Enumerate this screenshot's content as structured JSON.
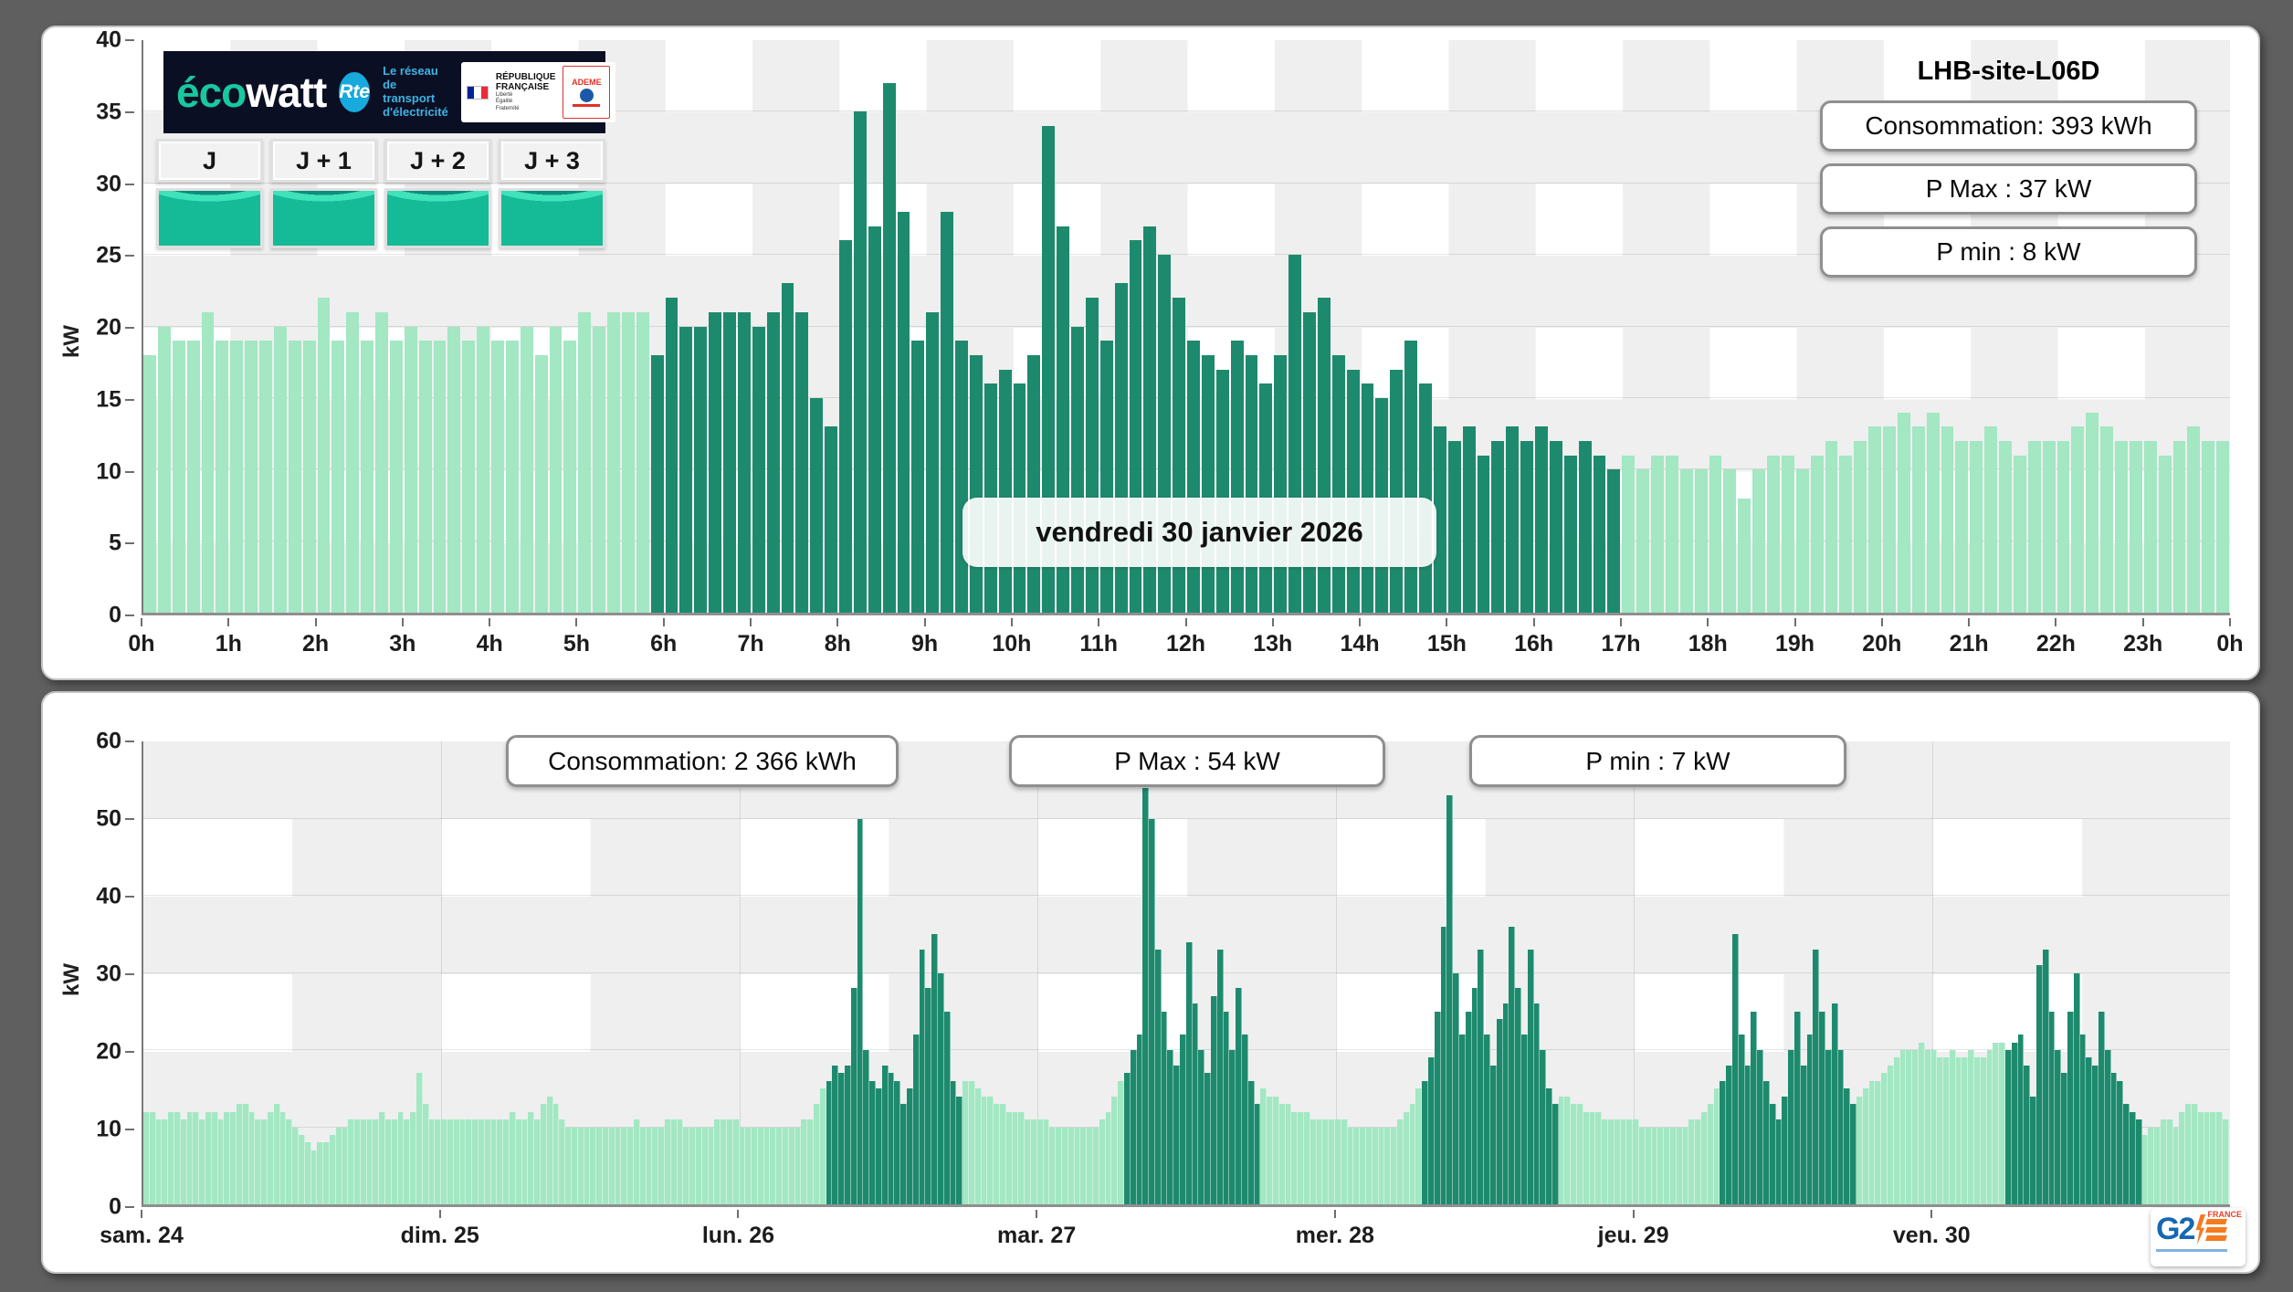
{
  "branding": {
    "ecowatt": {
      "eco": "éco",
      "watt": "watt"
    },
    "rte": {
      "abbr": "Rte",
      "tagline": {
        "0": "Le réseau",
        "1": "de transport",
        "2": "d'électricité"
      }
    },
    "gov": {
      "line1": "RÉPUBLIQUE",
      "line2": "FRANÇAISE",
      "motto": {
        "0": "Liberté",
        "1": "Égalité",
        "2": "Fraternité"
      },
      "ademe": "ADEME"
    },
    "g2e": {
      "g2": "G2",
      "france": "FRANCE"
    }
  },
  "forecast_tiles": [
    {
      "label": "J"
    },
    {
      "label": "J + 1"
    },
    {
      "label": "J + 2"
    },
    {
      "label": "J + 3"
    }
  ],
  "top_section": {
    "site_title": "LHB-site-L06D",
    "stats": [
      {
        "text": "Consommation: 393 kWh"
      },
      {
        "text": "P Max :  37 kW"
      },
      {
        "text": "P min : 8 kW"
      }
    ],
    "date_label": "vendredi 30 janvier 2026"
  },
  "bottom_section": {
    "stats": [
      {
        "text": "Consommation: 2 366 kWh"
      },
      {
        "text": "P Max :  54 kW"
      },
      {
        "text": "P min : 7 kW"
      }
    ]
  },
  "chart_data": [
    {
      "type": "bar",
      "name": "daily-load-curve",
      "title": "vendredi 30 janvier 2026",
      "ylabel": "kW",
      "ylim": [
        0,
        40
      ],
      "yticks": [
        0,
        5,
        10,
        15,
        20,
        25,
        30,
        35,
        40
      ],
      "x_tick_labels": [
        "0h",
        "1h",
        "2h",
        "3h",
        "4h",
        "5h",
        "6h",
        "7h",
        "8h",
        "9h",
        "10h",
        "11h",
        "12h",
        "13h",
        "14h",
        "15h",
        "16h",
        "17h",
        "18h",
        "19h",
        "20h",
        "21h",
        "22h",
        "23h",
        "0h"
      ],
      "interval_minutes": 10,
      "grid": true,
      "legend": "none",
      "colors": {
        "light": "#a3e7c3",
        "dark": "#1e8a6d"
      },
      "dark_segments": [
        [
          35,
          101
        ]
      ],
      "values": [
        18,
        20,
        19,
        19,
        21,
        19,
        19,
        19,
        19,
        20,
        19,
        19,
        22,
        19,
        21,
        19,
        21,
        19,
        20,
        19,
        19,
        20,
        19,
        20,
        19,
        19,
        20,
        18,
        20,
        19,
        21,
        20,
        21,
        21,
        21,
        18,
        22,
        20,
        20,
        21,
        21,
        21,
        20,
        21,
        23,
        21,
        15,
        13,
        26,
        35,
        27,
        37,
        28,
        19,
        21,
        28,
        19,
        18,
        16,
        17,
        16,
        18,
        34,
        27,
        20,
        22,
        19,
        23,
        26,
        27,
        25,
        22,
        19,
        18,
        17,
        19,
        18,
        16,
        18,
        25,
        21,
        22,
        18,
        17,
        16,
        15,
        17,
        19,
        16,
        13,
        12,
        13,
        11,
        12,
        13,
        12,
        13,
        12,
        11,
        12,
        11,
        10,
        11,
        10,
        11,
        11,
        10,
        10,
        11,
        10,
        8,
        10,
        11,
        11,
        10,
        11,
        12,
        11,
        12,
        13,
        13,
        14,
        13,
        14,
        13,
        12,
        12,
        13,
        12,
        11,
        12,
        12,
        12,
        13,
        14,
        13,
        12,
        12,
        12,
        11,
        12,
        13,
        12,
        12
      ]
    },
    {
      "type": "bar",
      "name": "weekly-load-curve",
      "ylabel": "kW",
      "ylim": [
        0,
        60
      ],
      "yticks": [
        0,
        10,
        20,
        30,
        40,
        50,
        60
      ],
      "day_labels": [
        "sam. 24",
        "dim. 25",
        "lun. 26",
        "mar. 27",
        "mer. 28",
        "jeu. 29",
        "ven. 30"
      ],
      "days": 7,
      "interval_minutes": 30,
      "grid": true,
      "legend": "none",
      "colors": {
        "light": "#a3e7c3",
        "dark": "#1e8a6d"
      },
      "dark_segments": [
        [
          110,
          131
        ],
        [
          158,
          179
        ],
        [
          206,
          227
        ],
        [
          254,
          275
        ],
        [
          300,
          321
        ]
      ],
      "values": [
        12,
        12,
        11,
        11,
        12,
        12,
        11,
        12,
        12,
        11,
        12,
        12,
        11,
        12,
        12,
        13,
        13,
        12,
        11,
        11,
        12,
        13,
        12,
        11,
        10,
        9,
        8,
        7,
        8,
        8,
        9,
        10,
        10,
        11,
        11,
        11,
        11,
        11,
        12,
        11,
        11,
        12,
        11,
        12,
        17,
        13,
        11,
        11,
        11,
        11,
        11,
        11,
        11,
        11,
        11,
        11,
        11,
        11,
        11,
        12,
        11,
        11,
        12,
        11,
        13,
        14,
        13,
        11,
        10,
        10,
        10,
        10,
        10,
        10,
        10,
        10,
        10,
        10,
        10,
        11,
        10,
        10,
        10,
        10,
        11,
        11,
        11,
        10,
        10,
        10,
        10,
        10,
        11,
        11,
        11,
        11,
        10,
        10,
        10,
        10,
        10,
        10,
        10,
        10,
        10,
        10,
        11,
        11,
        13,
        15,
        16,
        18,
        17,
        18,
        28,
        50,
        20,
        16,
        15,
        18,
        17,
        16,
        13,
        15,
        22,
        33,
        28,
        35,
        30,
        25,
        16,
        14,
        16,
        16,
        15,
        14,
        14,
        13,
        13,
        12,
        12,
        12,
        11,
        11,
        11,
        11,
        10,
        10,
        10,
        10,
        10,
        10,
        10,
        10,
        11,
        12,
        14,
        16,
        17,
        20,
        22,
        54,
        50,
        33,
        25,
        20,
        18,
        22,
        34,
        26,
        20,
        17,
        27,
        33,
        25,
        20,
        28,
        22,
        16,
        13,
        15,
        14,
        14,
        13,
        13,
        12,
        12,
        12,
        11,
        11,
        11,
        11,
        11,
        11,
        10,
        10,
        10,
        10,
        10,
        10,
        10,
        10,
        11,
        12,
        13,
        15,
        16,
        19,
        25,
        36,
        53,
        30,
        22,
        25,
        28,
        33,
        22,
        18,
        24,
        26,
        36,
        28,
        22,
        33,
        26,
        20,
        15,
        13,
        14,
        14,
        13,
        13,
        12,
        12,
        12,
        11,
        11,
        11,
        11,
        11,
        11,
        10,
        10,
        10,
        10,
        10,
        10,
        10,
        10,
        11,
        11,
        12,
        13,
        15,
        16,
        18,
        35,
        22,
        18,
        25,
        20,
        16,
        13,
        11,
        14,
        20,
        25,
        18,
        22,
        33,
        25,
        20,
        26,
        20,
        15,
        13,
        14,
        15,
        16,
        16,
        17,
        18,
        19,
        20,
        20,
        20,
        21,
        20,
        20,
        19,
        19,
        20,
        19,
        19,
        20,
        19,
        19,
        20,
        21,
        21,
        20,
        21,
        22,
        18,
        14,
        31,
        33,
        25,
        20,
        17,
        25,
        30,
        22,
        19,
        18,
        25,
        20,
        17,
        16,
        13,
        12,
        11,
        9,
        10,
        10,
        11,
        11,
        10,
        12,
        13,
        13,
        12,
        12,
        12,
        12,
        11
      ]
    }
  ]
}
